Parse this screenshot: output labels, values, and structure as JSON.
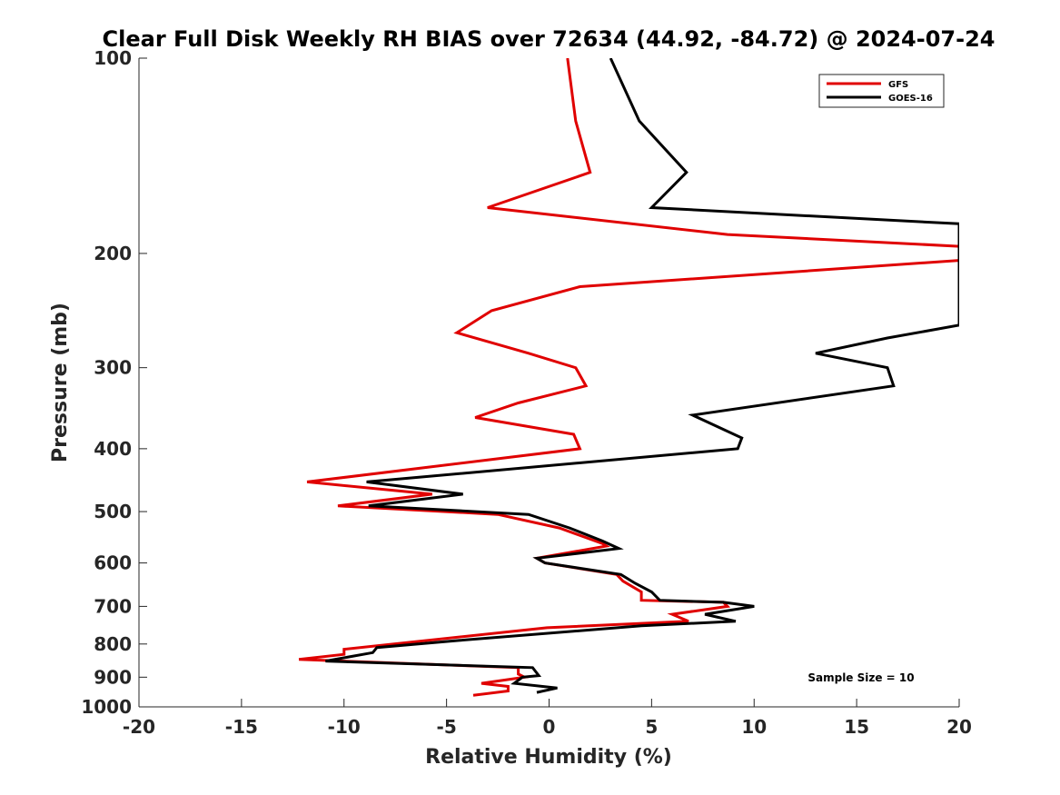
{
  "chart_data": {
    "type": "line",
    "title": "Clear Full Disk Weekly RH BIAS over 72634 (44.92, -84.72) @ 2024-07-24",
    "xlabel": "Relative Humidity (%)",
    "ylabel": "Pressure (mb)",
    "xlim": [
      -20,
      20
    ],
    "ylim": [
      100,
      1000
    ],
    "yscale": "log",
    "y_reversed": true,
    "xticks": [
      -20,
      -15,
      -10,
      -5,
      0,
      5,
      10,
      15,
      20
    ],
    "xtick_labels": [
      "-20",
      "-15",
      "-10",
      "-5",
      "0",
      "5",
      "10",
      "15",
      "20"
    ],
    "yticks": [
      100,
      200,
      300,
      400,
      500,
      600,
      700,
      800,
      900,
      1000
    ],
    "ytick_labels": [
      "100",
      "200",
      "300",
      "400",
      "500",
      "600",
      "700",
      "800",
      "900",
      "1000"
    ],
    "grid": false,
    "legend_position": "top-right",
    "annotation": "Sample Size = 10",
    "series": [
      {
        "name": "GFS",
        "color": "#e00000",
        "points": [
          [
            0.9,
            100
          ],
          [
            1.3,
            125
          ],
          [
            2.0,
            150
          ],
          [
            -3.0,
            170
          ],
          [
            8.7,
            187
          ],
          [
            20.0,
            195
          ],
          [
            20.0,
            205
          ],
          [
            1.5,
            225
          ],
          [
            -2.8,
            245
          ],
          [
            -4.5,
            265
          ],
          [
            -1.0,
            285
          ],
          [
            1.3,
            300
          ],
          [
            1.8,
            320
          ],
          [
            -1.5,
            340
          ],
          [
            -3.6,
            358
          ],
          [
            1.2,
            380
          ],
          [
            1.5,
            400
          ],
          [
            -11.8,
            450
          ],
          [
            -5.7,
            470
          ],
          [
            -10.3,
            490
          ],
          [
            -2.5,
            505
          ],
          [
            0.5,
            530
          ],
          [
            2.6,
            560
          ],
          [
            2.8,
            565
          ],
          [
            -0.6,
            590
          ],
          [
            -0.2,
            600
          ],
          [
            3.3,
            625
          ],
          [
            3.6,
            640
          ],
          [
            4.5,
            665
          ],
          [
            4.5,
            685
          ],
          [
            8.5,
            690
          ],
          [
            8.7,
            700
          ],
          [
            6.0,
            720
          ],
          [
            6.8,
            738
          ],
          [
            -0.1,
            755
          ],
          [
            -10.0,
            815
          ],
          [
            -10.0,
            830
          ],
          [
            -12.2,
            845
          ],
          [
            -1.5,
            870
          ],
          [
            -1.5,
            890
          ],
          [
            -1.2,
            900
          ],
          [
            -3.3,
            920
          ],
          [
            -2.0,
            930
          ],
          [
            -2.0,
            945
          ],
          [
            -3.7,
            960
          ]
        ]
      },
      {
        "name": "GOES-16",
        "color": "#000000",
        "points": [
          [
            3.0,
            100
          ],
          [
            4.4,
            125
          ],
          [
            6.7,
            150
          ],
          [
            5.0,
            170
          ],
          [
            20.0,
            180
          ],
          [
            20.0,
            258
          ],
          [
            16.5,
            270
          ],
          [
            13.0,
            285
          ],
          [
            16.5,
            300
          ],
          [
            16.8,
            320
          ],
          [
            7.0,
            355
          ],
          [
            9.4,
            385
          ],
          [
            9.2,
            400
          ],
          [
            -8.9,
            450
          ],
          [
            -4.2,
            470
          ],
          [
            -8.8,
            490
          ],
          [
            -1.0,
            505
          ],
          [
            1.0,
            530
          ],
          [
            2.6,
            555
          ],
          [
            3.4,
            570
          ],
          [
            -0.6,
            590
          ],
          [
            -0.2,
            600
          ],
          [
            3.5,
            625
          ],
          [
            4.2,
            645
          ],
          [
            5.0,
            665
          ],
          [
            5.4,
            685
          ],
          [
            8.5,
            690
          ],
          [
            10.0,
            700
          ],
          [
            7.6,
            720
          ],
          [
            9.1,
            738
          ],
          [
            4.5,
            750
          ],
          [
            -4.4,
            790
          ],
          [
            -8.4,
            810
          ],
          [
            -8.6,
            825
          ],
          [
            -10.9,
            850
          ],
          [
            -0.8,
            870
          ],
          [
            -0.5,
            895
          ],
          [
            -1.3,
            900
          ],
          [
            -1.7,
            920
          ],
          [
            0.4,
            935
          ],
          [
            -0.6,
            950
          ]
        ]
      }
    ]
  }
}
